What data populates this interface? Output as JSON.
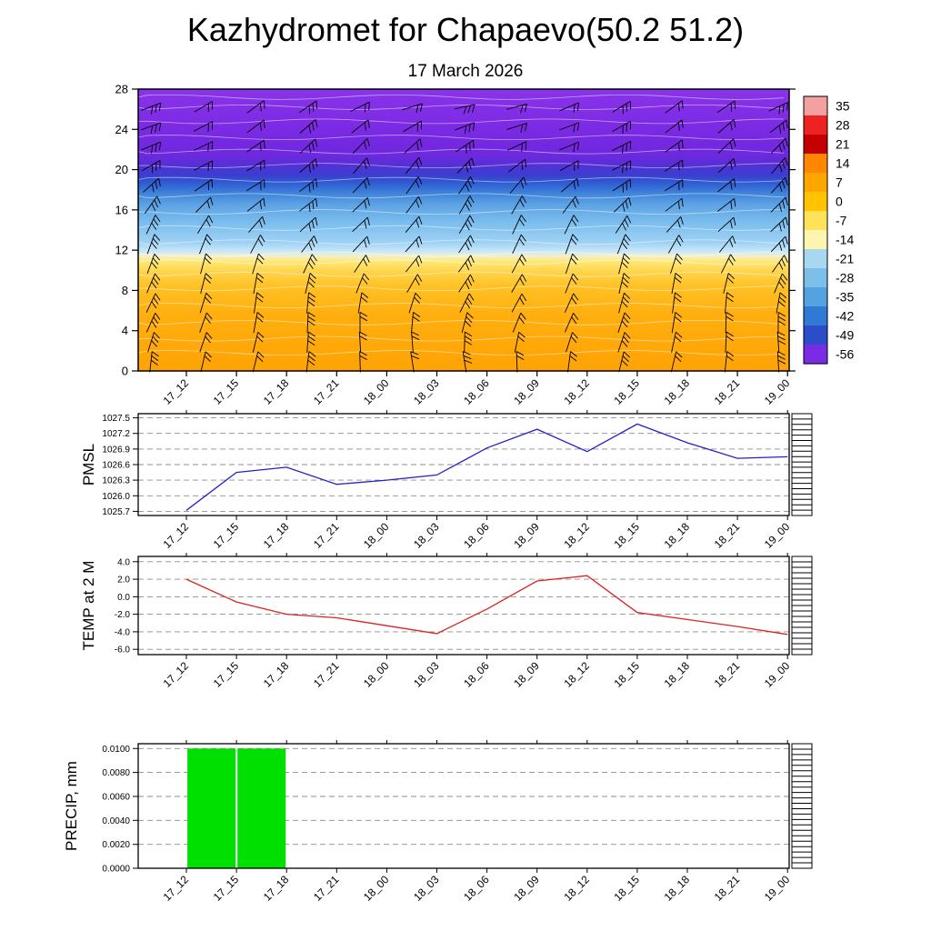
{
  "title": "Kazhydromet for Chapaevo(50.2 51.2)",
  "subtitle": "17 March 2026",
  "time_labels": [
    "17_12",
    "17_15",
    "17_18",
    "17_21",
    "18_00",
    "18_03",
    "18_06",
    "18_09",
    "18_12",
    "18_15",
    "18_18",
    "18_21",
    "19_00"
  ],
  "colors": {
    "pmsl_line": "#2222c8",
    "temp_line": "#dd2222",
    "precip_bar": "#00e000",
    "grid": "#8c8c8c",
    "contour": "#ffffff",
    "barb": "#000000"
  },
  "chart_data": [
    {
      "id": "cross-section",
      "type": "heatmap",
      "title": "",
      "ylabel": "",
      "ylim": [
        0,
        28
      ],
      "yticks": [
        0,
        4,
        8,
        12,
        16,
        20,
        24,
        28
      ],
      "categories": [
        "17_12",
        "17_15",
        "17_18",
        "17_21",
        "18_00",
        "18_03",
        "18_06",
        "18_09",
        "18_12",
        "18_15",
        "18_18",
        "18_21",
        "19_00"
      ],
      "gradient_stops": [
        {
          "pos": 0.0,
          "color": "#8a34ea"
        },
        {
          "pos": 0.13,
          "color": "#7c2ae4"
        },
        {
          "pos": 0.235,
          "color": "#6e28de"
        },
        {
          "pos": 0.27,
          "color": "#5430d6"
        },
        {
          "pos": 0.305,
          "color": "#3a3ecf"
        },
        {
          "pos": 0.335,
          "color": "#2f5ed2"
        },
        {
          "pos": 0.37,
          "color": "#3f84da"
        },
        {
          "pos": 0.41,
          "color": "#5da3e4"
        },
        {
          "pos": 0.47,
          "color": "#79bcee"
        },
        {
          "pos": 0.545,
          "color": "#9fd2f4"
        },
        {
          "pos": 0.575,
          "color": "#c9e7f9"
        },
        {
          "pos": 0.592,
          "color": "#f2f0cf"
        },
        {
          "pos": 0.61,
          "color": "#ffe97a"
        },
        {
          "pos": 0.645,
          "color": "#ffd54e"
        },
        {
          "pos": 0.7,
          "color": "#ffc125"
        },
        {
          "pos": 0.8,
          "color": "#ffaf0f"
        },
        {
          "pos": 1.0,
          "color": "#ffa304"
        }
      ],
      "wind_barbs": {
        "columns": 13,
        "rows": 14,
        "color": "#000000"
      },
      "colorbar": {
        "labels": [
          35,
          28,
          21,
          14,
          7,
          0,
          -7,
          -14,
          -21,
          -28,
          -35,
          -42,
          -49,
          -56
        ],
        "colors": [
          "#f2a0a0",
          "#ee2222",
          "#c40000",
          "#ff8800",
          "#ffa500",
          "#ffc300",
          "#ffe25a",
          "#fdf4b0",
          "#a8d8f0",
          "#7cc0ea",
          "#55a2e0",
          "#2f7ad4",
          "#2b4ec8",
          "#7a2ce4"
        ]
      }
    },
    {
      "id": "pmsl",
      "type": "line",
      "ylabel": "PMSL",
      "decimals": 1,
      "ylim": [
        1025.62,
        1027.58
      ],
      "yticks": [
        1025.7,
        1026.0,
        1026.3,
        1026.6,
        1026.9,
        1027.2,
        1027.5
      ],
      "categories": [
        "17_12",
        "17_15",
        "17_18",
        "17_21",
        "18_00",
        "18_03",
        "18_06",
        "18_09",
        "18_12",
        "18_15",
        "18_18",
        "18_21",
        "19_00"
      ],
      "values": [
        1025.72,
        1026.45,
        1026.55,
        1026.22,
        1026.3,
        1026.4,
        1026.92,
        1027.28,
        1026.85,
        1027.38,
        1027.02,
        1026.72,
        1026.75
      ]
    },
    {
      "id": "temp",
      "type": "line",
      "ylabel": "TEMP at 2 M",
      "decimals": 1,
      "ylim": [
        -6.6,
        4.6
      ],
      "yticks": [
        -6.0,
        -4.0,
        -2.0,
        0.0,
        2.0,
        4.0
      ],
      "categories": [
        "17_12",
        "17_15",
        "17_18",
        "17_21",
        "18_00",
        "18_03",
        "18_06",
        "18_09",
        "18_12",
        "18_15",
        "18_18",
        "18_21",
        "19_00"
      ],
      "values": [
        2.0,
        -0.6,
        -2.0,
        -2.4,
        -3.3,
        -4.2,
        -1.4,
        1.8,
        2.4,
        -1.8,
        -2.6,
        -3.4,
        -4.3
      ]
    },
    {
      "id": "precip",
      "type": "bar",
      "ylabel": "PRECIP, mm",
      "decimals": 4,
      "ylim": [
        0.0,
        0.0104
      ],
      "yticks": [
        0.0,
        0.002,
        0.004,
        0.006,
        0.008,
        0.01
      ],
      "categories": [
        "17_12",
        "17_15",
        "17_18",
        "17_21",
        "18_00",
        "18_03",
        "18_06",
        "18_09",
        "18_12",
        "18_15",
        "18_18",
        "18_21",
        "19_00"
      ],
      "values": [
        0,
        0.01,
        0.01,
        0,
        0,
        0,
        0,
        0,
        0,
        0,
        0,
        0,
        0
      ]
    }
  ]
}
